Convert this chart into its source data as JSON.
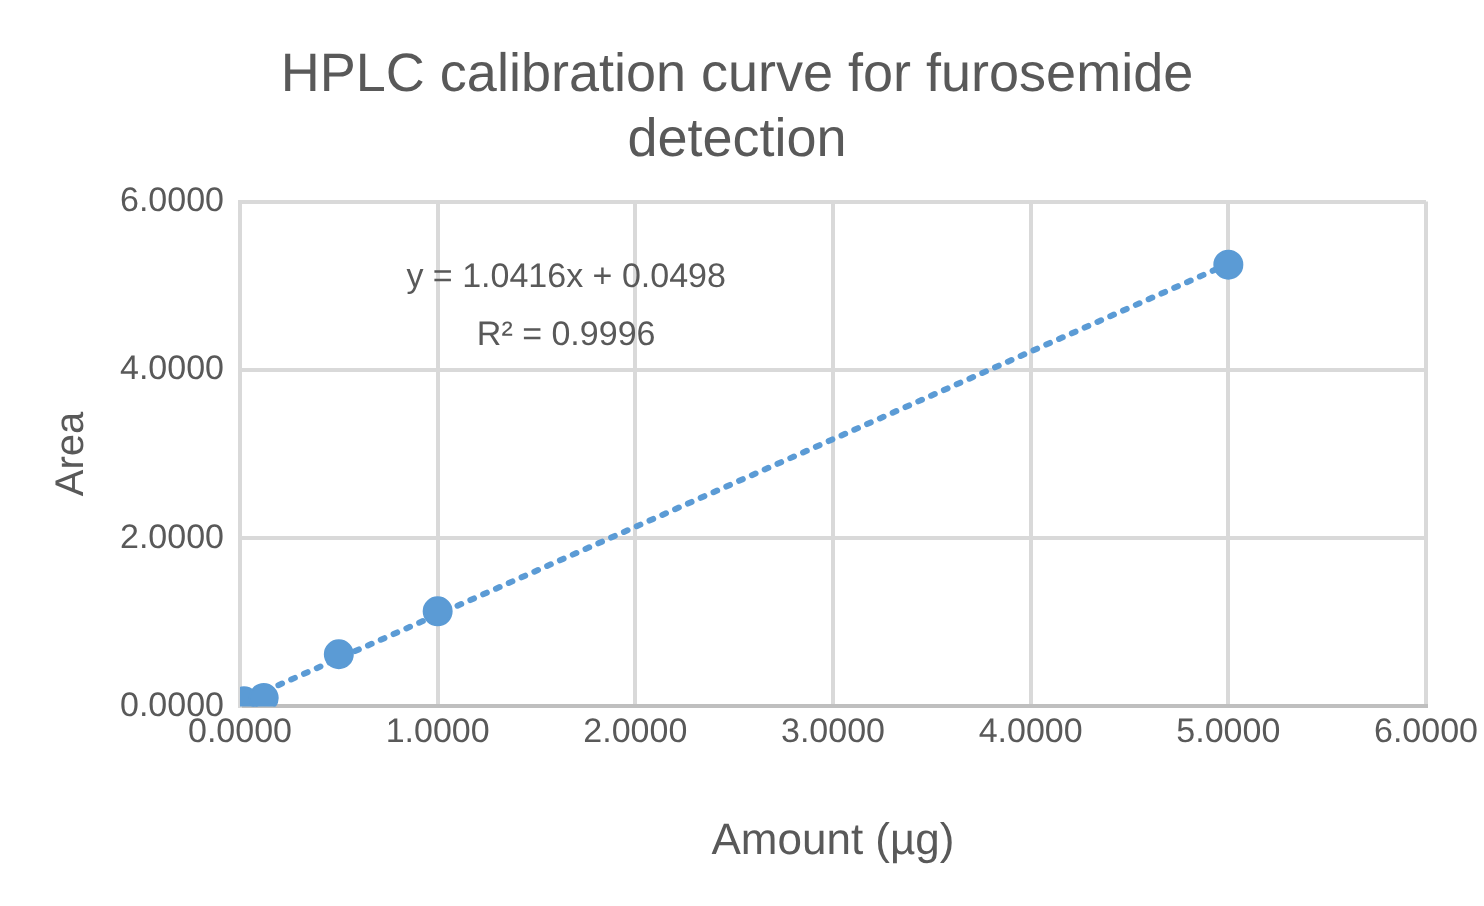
{
  "chart_data": {
    "type": "scatter",
    "title": "HPLC calibration curve for furosemide detection",
    "xlabel": "Amount (µg)",
    "ylabel": "Area",
    "series": [
      {
        "type": "scatter",
        "color": "#5b9bd5",
        "x": [
          0.02,
          0.12,
          0.5,
          1,
          5
        ],
        "values": [
          0.06,
          0.1,
          0.62,
          1.13,
          5.25
        ]
      },
      {
        "type": "line",
        "color": "#5b9bd5",
        "x": [
          0,
          5
        ],
        "values": [
          0.05,
          5.26
        ],
        "line_style": "dotted",
        "marker": "none"
      }
    ],
    "annotations": [
      "y = 1.0416x + 0.0498",
      "R² = 0.9996"
    ],
    "xlim": [
      0,
      6
    ],
    "ylim": [
      0,
      6
    ],
    "xticks": [
      {
        "value": 0,
        "label": "0.0000"
      },
      {
        "value": 1,
        "label": "1.0000"
      },
      {
        "value": 2,
        "label": "2.0000"
      },
      {
        "value": 3,
        "label": "3.0000"
      },
      {
        "value": 4,
        "label": "4.0000"
      },
      {
        "value": 5,
        "label": "5.0000"
      },
      {
        "value": 6,
        "label": "6.0000"
      }
    ],
    "yticks": [
      {
        "value": 0,
        "label": "0.0000"
      },
      {
        "value": 2,
        "label": "2.0000"
      },
      {
        "value": 4,
        "label": "4.0000"
      },
      {
        "value": 6,
        "label": "6.0000"
      }
    ],
    "grid": true,
    "legend": false,
    "marker": "circle"
  }
}
